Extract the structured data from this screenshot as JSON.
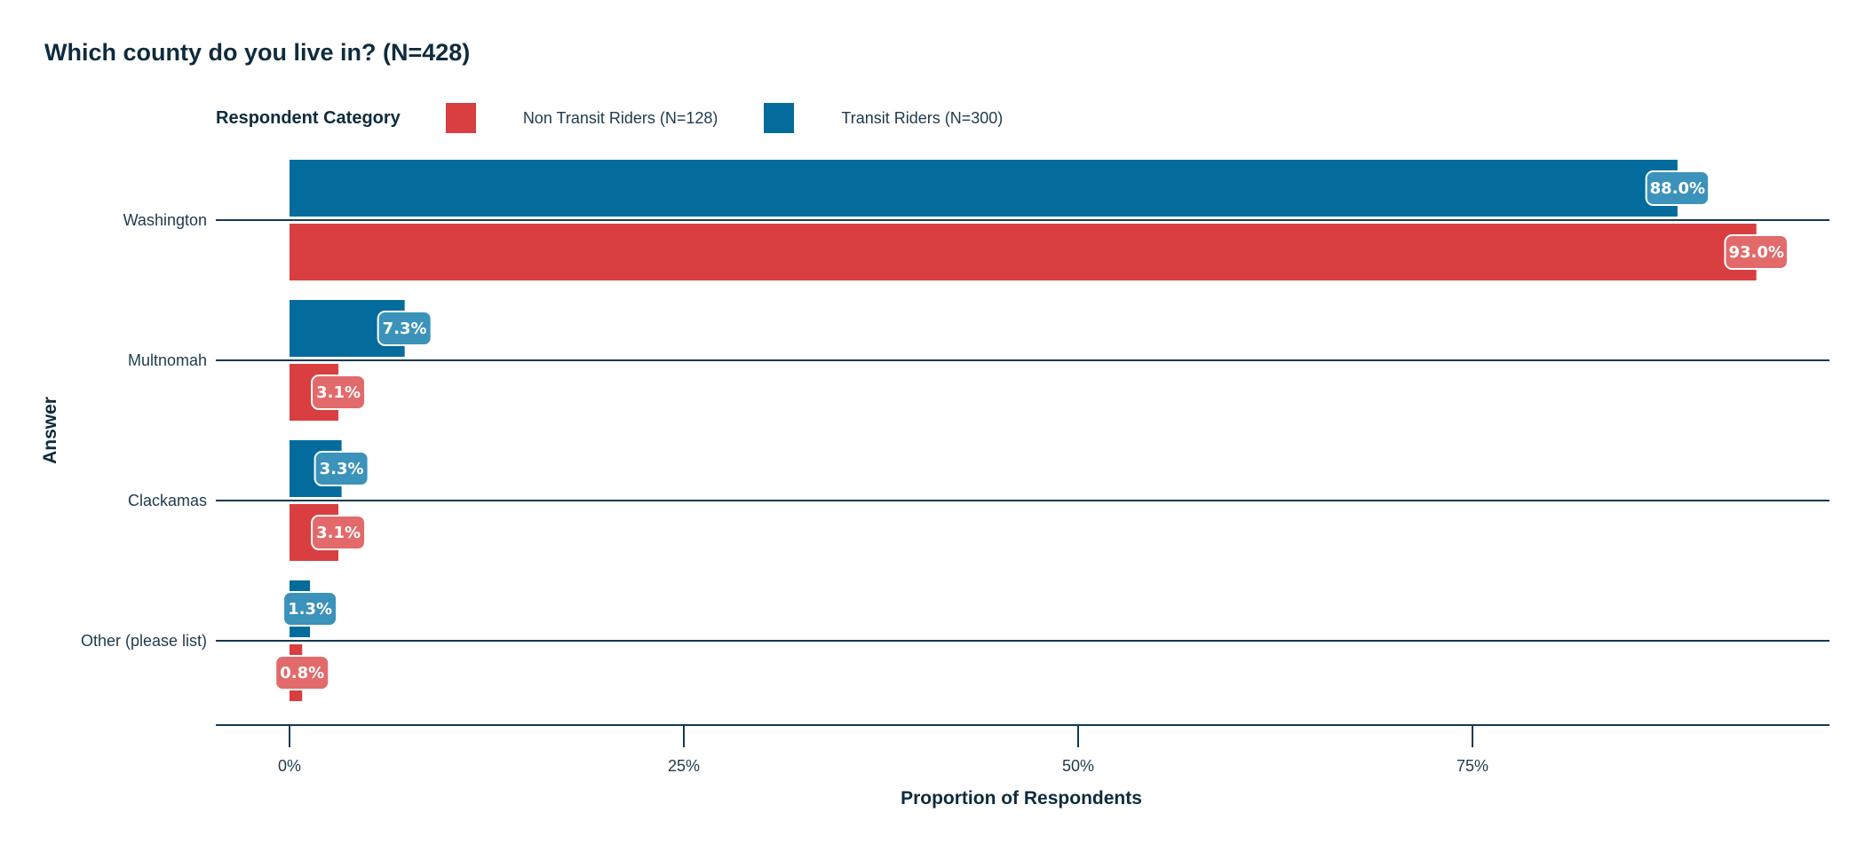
{
  "chart_data": {
    "type": "bar",
    "orientation": "horizontal",
    "title": "Which county do you live in? (N=428)",
    "xlabel": "Proportion of Respondents",
    "ylabel": "Answer",
    "categories": [
      "Washington",
      "Multnomah",
      "Clackamas",
      "Other (please list)"
    ],
    "legend_title": "Respondent Category",
    "legend_position": "top",
    "series": [
      {
        "name": "Transit Riders (N=300)",
        "color": "#046c9c",
        "label_color": "#3b92ba",
        "values": [
          88.0,
          7.3,
          3.3,
          1.3
        ],
        "labels": [
          "88.0%",
          "7.3%",
          "3.3%",
          "1.3%"
        ]
      },
      {
        "name": "Non Transit Riders (N=128)",
        "color": "#d93f40",
        "label_color": "#e26a6b",
        "values": [
          93.0,
          3.1,
          3.1,
          0.8
        ],
        "labels": [
          "93.0%",
          "3.1%",
          "3.1%",
          "0.8%"
        ]
      }
    ],
    "legend_order": [
      1,
      0
    ],
    "xlim": [
      0,
      100
    ],
    "x_ticks": [
      0,
      25,
      50,
      75
    ],
    "x_tick_labels": [
      "0%",
      "25%",
      "50%",
      "75%"
    ],
    "grid": false
  }
}
